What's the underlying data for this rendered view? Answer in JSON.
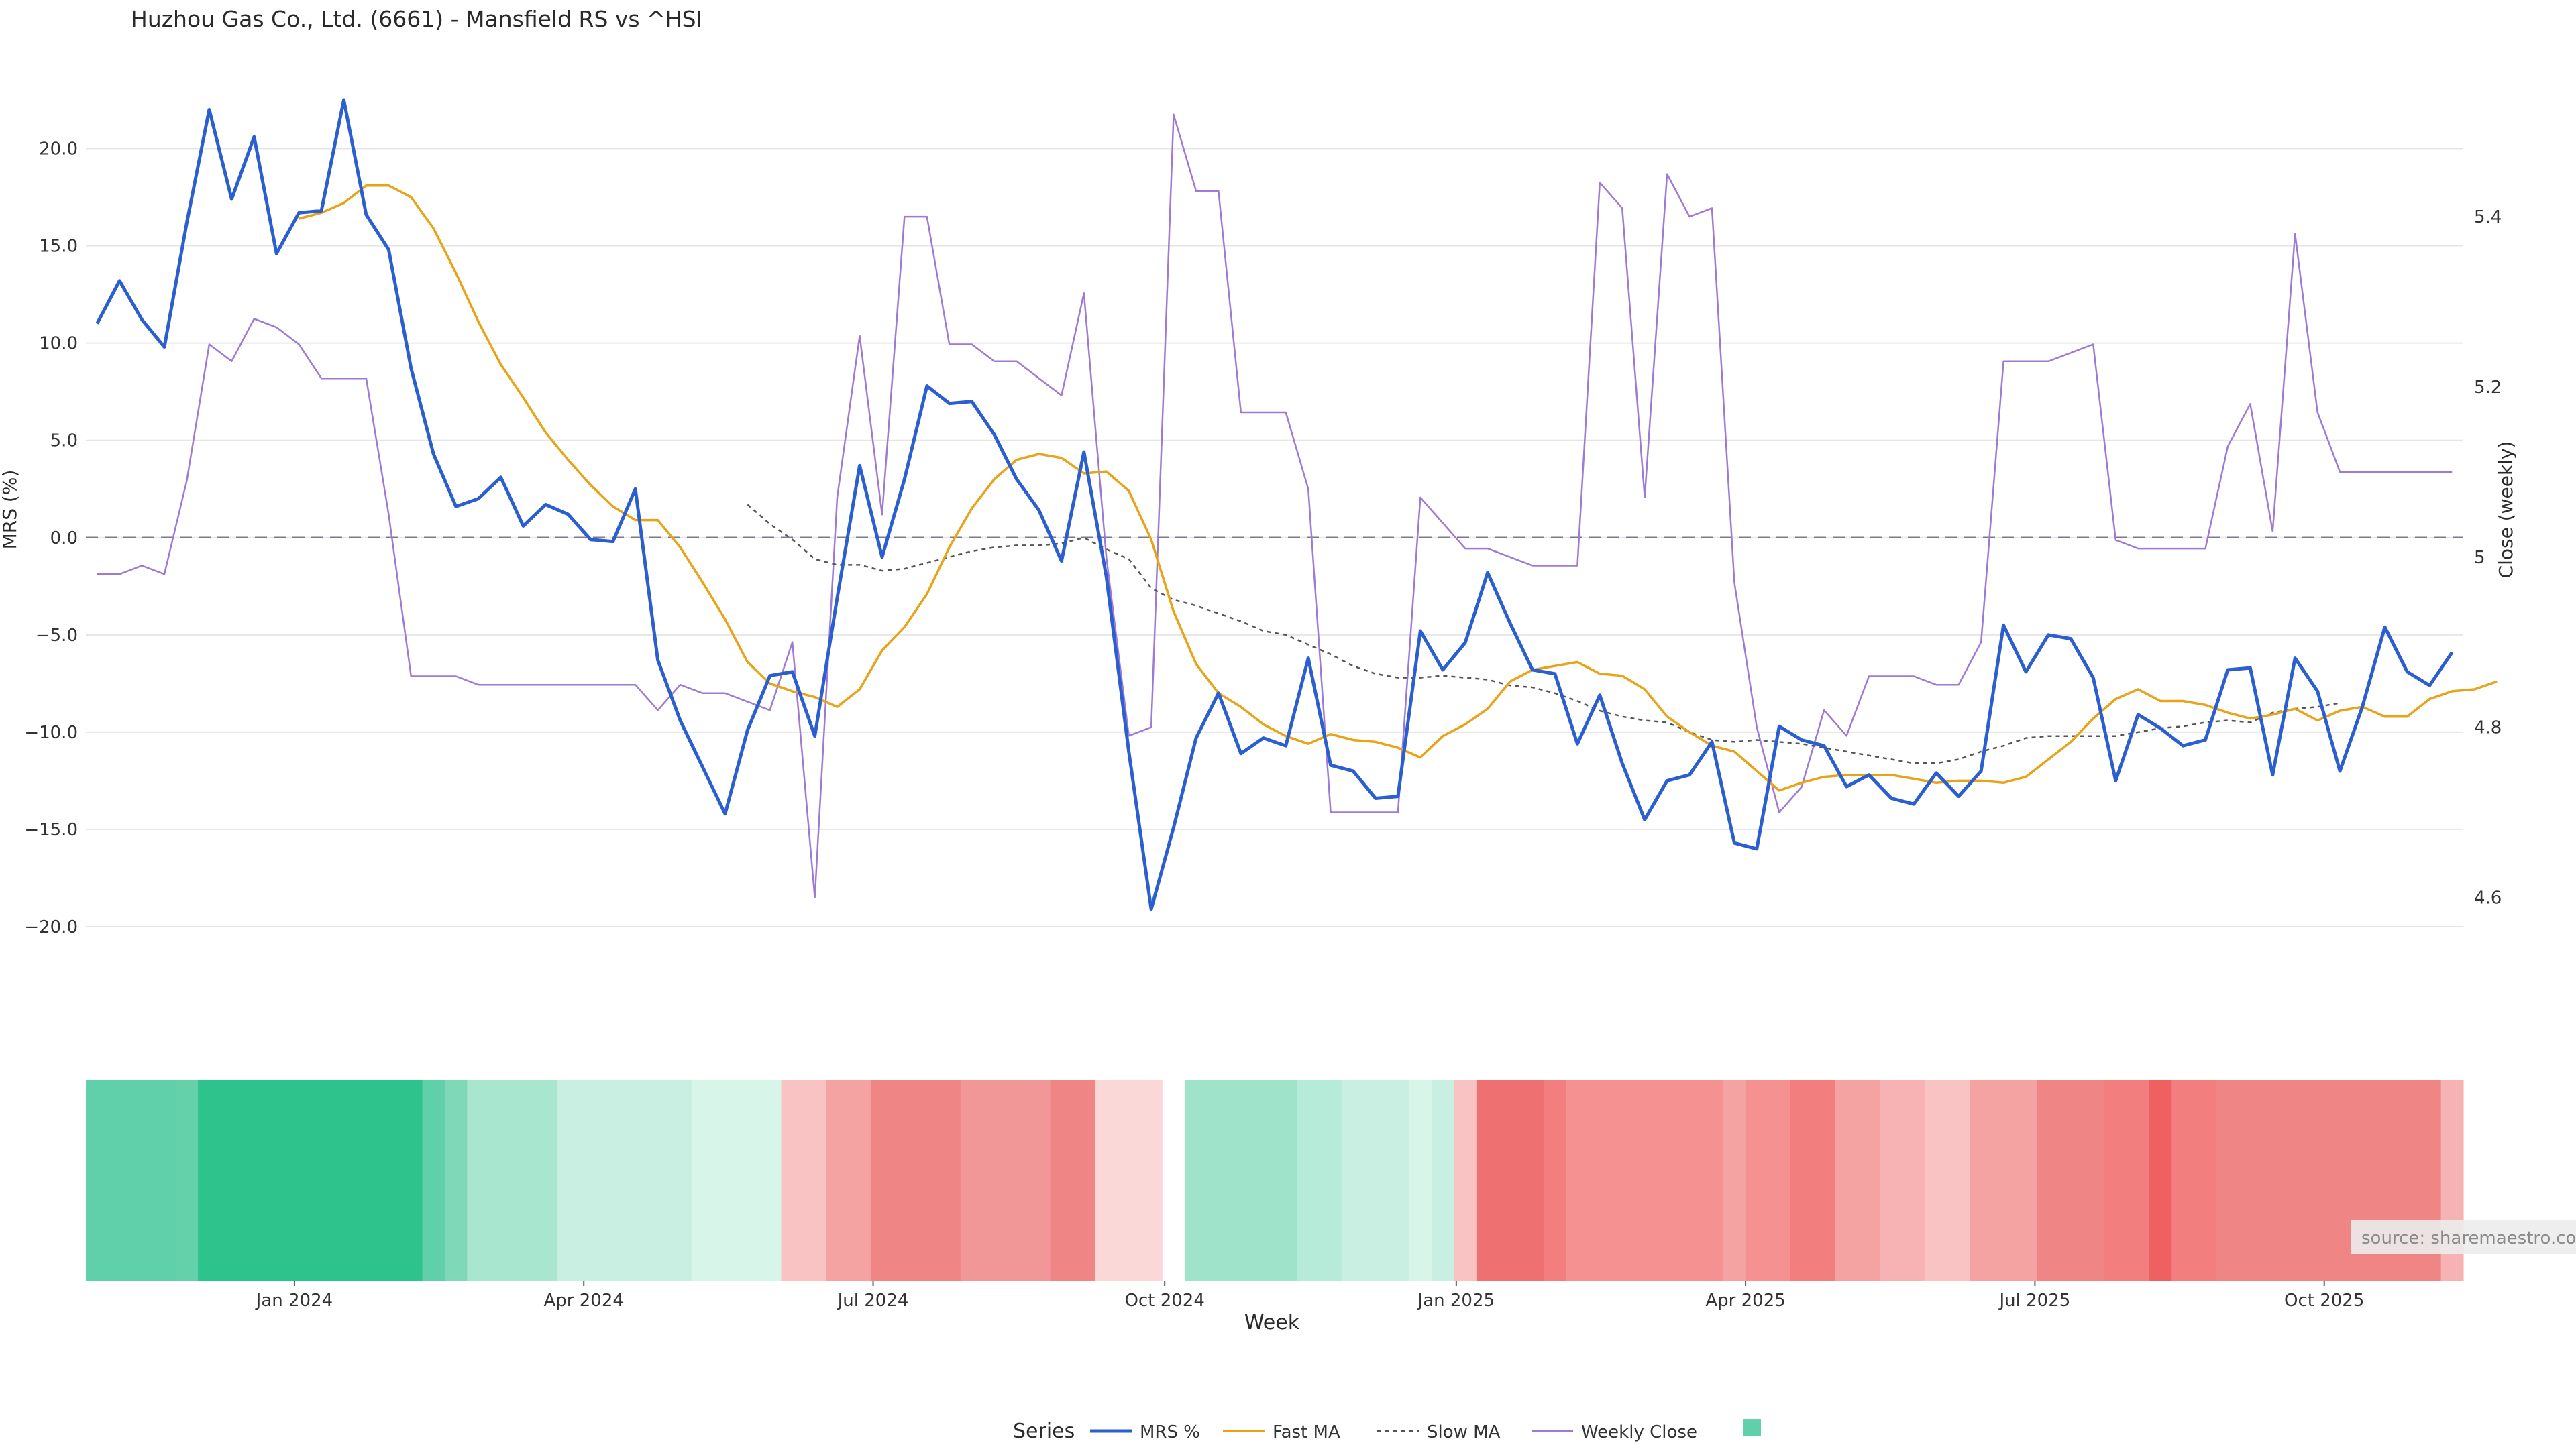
{
  "chart_data": {
    "type": "line",
    "title": "Huzhou Gas Co., Ltd. (6661) - Mansfield RS vs ^HSI",
    "xlabel": "Week",
    "ylabel": "MRS (%)",
    "y2label": "Close (weekly)",
    "ylim": [
      -22.0,
      23.5
    ],
    "y2lim": [
      4.52,
      5.56
    ],
    "y_ticks": [
      -20,
      -15,
      -10,
      -5,
      0,
      5,
      10,
      15,
      20
    ],
    "y_tick_labels": [
      "−20.0",
      "−15.0",
      "−10.0",
      "−5.0",
      "0.0",
      "5.0",
      "10.0",
      "15.0",
      "20.0"
    ],
    "y2_ticks": [
      4.6,
      4.8,
      5.0,
      5.2,
      5.4
    ],
    "y2_tick_labels": [
      "4.6",
      "4.8",
      "5",
      "5.2",
      "5.4"
    ],
    "x_ticks": [
      8.8,
      21.7,
      34.6,
      47.6,
      60.6,
      73.5,
      86.4,
      99.3
    ],
    "x_tick_labels": [
      "Jan 2024",
      "Apr 2024",
      "Jul 2024",
      "Oct 2024",
      "Jan 2025",
      "Apr 2025",
      "Jul 2025",
      "Oct 2025"
    ],
    "source_note": "source: sharemaestro.com",
    "legend_title": "Series",
    "legend_position": "bottom-center",
    "series": [
      {
        "name": "MRS %",
        "color": "#2b5fcf",
        "values": [
          11.0,
          13.2,
          11.2,
          9.8,
          16.2,
          22.0,
          17.4,
          20.6,
          14.6,
          16.7,
          16.8,
          22.5,
          16.6,
          14.8,
          8.7,
          4.3,
          1.6,
          2.0,
          3.1,
          0.6,
          1.7,
          1.2,
          -0.1,
          -0.2,
          2.5,
          -6.3,
          -9.4,
          -11.8,
          -14.2,
          -9.9,
          -7.1,
          -6.9,
          -10.2,
          -3.1,
          3.7,
          -1.0,
          3.0,
          7.8,
          6.9,
          7.0,
          5.3,
          3.0,
          1.4,
          -1.2,
          4.4,
          -2.0,
          -11.0,
          -19.1,
          -14.9,
          -10.3,
          -8.0,
          -11.1,
          -10.3,
          -10.7,
          -6.2,
          -11.7,
          -12.0,
          -13.4,
          -13.3,
          -4.8,
          -6.8,
          -5.4,
          -1.8,
          -4.4,
          -6.8,
          -7.0,
          -10.6,
          -8.1,
          -11.6,
          -14.5,
          -12.5,
          -12.2,
          -10.5,
          -15.7,
          -16.0,
          -9.7,
          -10.4,
          -10.7,
          -12.8,
          -12.2,
          -13.4,
          -13.7,
          -12.1,
          -13.3,
          -12.0,
          -4.5,
          -6.9,
          -5.0,
          -5.2,
          -7.2,
          -12.5,
          -9.1,
          -9.8,
          -10.7,
          -10.4,
          -6.8,
          -6.7,
          -12.2,
          -6.2,
          -7.9,
          -12.0,
          -8.7,
          -4.6,
          -6.9,
          -7.6,
          -5.9
        ],
        "x_start": 0
      },
      {
        "name": "Fast MA",
        "color": "#e8a317",
        "values": [
          16.4,
          16.7,
          17.2,
          18.1,
          18.1,
          17.5,
          15.9,
          13.6,
          11.1,
          8.9,
          7.2,
          5.4,
          4.0,
          2.7,
          1.6,
          0.9,
          0.9,
          -0.5,
          -2.3,
          -4.2,
          -6.4,
          -7.5,
          -7.9,
          -8.2,
          -8.7,
          -7.8,
          -5.8,
          -4.6,
          -2.9,
          -0.5,
          1.5,
          3.0,
          4.0,
          4.3,
          4.1,
          3.3,
          3.4,
          2.4,
          -0.1,
          -3.8,
          -6.5,
          -8.0,
          -8.7,
          -9.6,
          -10.2,
          -10.6,
          -10.1,
          -10.4,
          -10.5,
          -10.8,
          -11.3,
          -10.2,
          -9.6,
          -8.8,
          -7.4,
          -6.8,
          -6.6,
          -6.4,
          -7.0,
          -7.1,
          -7.8,
          -9.2,
          -10.0,
          -10.7,
          -11.0,
          -12.0,
          -13.0,
          -12.6,
          -12.3,
          -12.2,
          -12.2,
          -12.2,
          -12.4,
          -12.6,
          -12.5,
          -12.5,
          -12.6,
          -12.3,
          -11.4,
          -10.5,
          -9.3,
          -8.3,
          -7.8,
          -8.4,
          -8.4,
          -8.6,
          -9.0,
          -9.3,
          -9.1,
          -8.8,
          -9.4,
          -8.9,
          -8.7,
          -9.2,
          -9.2,
          -8.3,
          -7.9,
          -7.8,
          -7.4
        ],
        "x_start": 9
      },
      {
        "name": "Slow MA",
        "color": "#555555",
        "dash": "dotted",
        "values": [
          1.7,
          0.7,
          -0.1,
          -1.1,
          -1.4,
          -1.4,
          -1.7,
          -1.6,
          -1.3,
          -1.0,
          -0.7,
          -0.5,
          -0.4,
          -0.4,
          -0.3,
          0.0,
          -0.6,
          -1.1,
          -2.6,
          -3.2,
          -3.5,
          -3.9,
          -4.3,
          -4.8,
          -5.0,
          -5.5,
          -6.0,
          -6.6,
          -7.0,
          -7.2,
          -7.2,
          -7.1,
          -7.2,
          -7.3,
          -7.6,
          -7.7,
          -8.0,
          -8.4,
          -8.9,
          -9.2,
          -9.4,
          -9.5,
          -10.0,
          -10.4,
          -10.5,
          -10.4,
          -10.5,
          -10.6,
          -10.8,
          -11.0,
          -11.2,
          -11.4,
          -11.6,
          -11.6,
          -11.4,
          -11.0,
          -10.7,
          -10.3,
          -10.2,
          -10.2,
          -10.2,
          -10.2,
          -10.0,
          -9.8,
          -9.7,
          -9.5,
          -9.4,
          -9.5,
          -9.0,
          -8.8,
          -8.7,
          -8.5
        ],
        "x_start": 29
      },
      {
        "name": "Weekly Close",
        "color": "#9e7ad6",
        "axis": "right",
        "values": [
          4.98,
          4.98,
          4.99,
          4.98,
          5.09,
          5.25,
          5.23,
          5.28,
          5.27,
          5.25,
          5.21,
          5.21,
          5.21,
          5.05,
          4.86,
          4.86,
          4.86,
          4.85,
          4.85,
          4.85,
          4.85,
          4.85,
          4.85,
          4.85,
          4.85,
          4.82,
          4.85,
          4.84,
          4.84,
          4.83,
          4.82,
          4.9,
          4.6,
          5.07,
          5.26,
          5.05,
          5.4,
          5.4,
          5.25,
          5.25,
          5.23,
          5.23,
          5.21,
          5.19,
          5.31,
          5.0,
          4.79,
          4.8,
          5.52,
          5.43,
          5.43,
          5.17,
          5.17,
          5.17,
          5.08,
          4.7,
          4.7,
          4.7,
          4.7,
          5.07,
          5.04,
          5.01,
          5.01,
          5.0,
          4.99,
          4.99,
          4.99,
          5.44,
          5.41,
          5.07,
          5.45,
          5.4,
          5.41,
          4.97,
          4.8,
          4.7,
          4.73,
          4.82,
          4.79,
          4.86,
          4.86,
          4.86,
          4.85,
          4.85,
          4.9,
          5.23,
          5.23,
          5.23,
          5.24,
          5.25,
          5.02,
          5.01,
          5.01,
          5.01,
          5.01,
          5.13,
          5.18,
          5.03,
          5.38,
          5.17,
          5.1,
          5.1,
          5.1,
          5.1,
          5.1,
          5.1
        ],
        "x_start": 0
      }
    ],
    "heat_strip": {
      "colors": [
        "#5fd0a9",
        "#5fd0a9",
        "#5fd0a9",
        "#5fd0a9",
        "#64d1ab",
        "#2ec28d",
        "#2ec28d",
        "#2ec28d",
        "#2ec28d",
        "#2ec28d",
        "#2ec28d",
        "#2ec28d",
        "#2ec28d",
        "#2ec28d",
        "#2ec28d",
        "#5fd0a9",
        "#7fd9b9",
        "#a8e6d0",
        "#a8e6d0",
        "#a8e6d0",
        "#a8e6d0",
        "#c8efe1",
        "#c8efe1",
        "#c8efe1",
        "#c8efe1",
        "#c8efe1",
        "#c8efe1",
        "#d8f5ea",
        "#d8f5ea",
        "#d8f5ea",
        "#d8f5ea",
        "#f9c3c3",
        "#f9c3c3",
        "#f4a2a2",
        "#f4a2a2",
        "#f08585",
        "#f08585",
        "#f08585",
        "#f08585",
        "#f29797",
        "#f29797",
        "#f29797",
        "#f29797",
        "#f08585",
        "#f08585",
        "#fbd8d8",
        "#fbd8d8",
        "#fbd8d8",
        "#ffffff",
        "#9fe3cb",
        "#9fe3cb",
        "#9fe3cb",
        "#9fe3cb",
        "#9fe3cb",
        "#b7ebd9",
        "#b7ebd9",
        "#c8efe1",
        "#c8efe1",
        "#c8efe1",
        "#d8f5ea",
        "#c8efe1",
        "#f9c3c3",
        "#ef7070",
        "#ef7070",
        "#ef7070",
        "#f27e7e",
        "#f59191",
        "#f59191",
        "#f59191",
        "#f59191",
        "#f59191",
        "#f59191",
        "#f59191",
        "#f4a2a2",
        "#f59191",
        "#f59191",
        "#f27e7e",
        "#f27e7e",
        "#f4a2a2",
        "#f4a2a2",
        "#f7b3b3",
        "#f7b3b3",
        "#f9c3c3",
        "#f9c3c3",
        "#f4a2a2",
        "#f4a2a2",
        "#f4a2a2",
        "#f08585",
        "#f08585",
        "#f08585",
        "#f27e7e",
        "#f27e7e",
        "#ef6060",
        "#f27e7e",
        "#f27e7e",
        "#f08585",
        "#f08585",
        "#f08585",
        "#f08585",
        "#f08585",
        "#f08585",
        "#f08585",
        "#f08585",
        "#f08585",
        "#f08585",
        "#f7b3b3"
      ]
    }
  }
}
